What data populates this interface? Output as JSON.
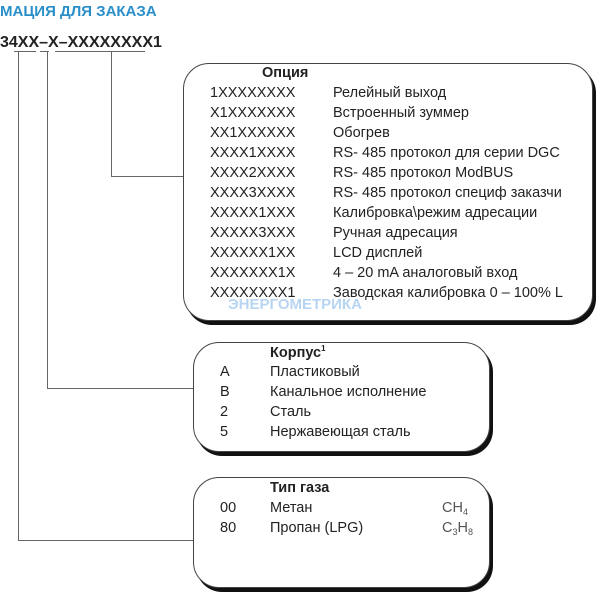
{
  "title": "МАЦИЯ ДЛЯ ЗАКАЗА",
  "code": "34XX–X–XXXXXXXX1",
  "options": {
    "header": "Опция",
    "rows": [
      {
        "code": "1XXXXXXXX",
        "desc": "Релейный выход"
      },
      {
        "code": "X1XXXXXXX",
        "desc": "Встроенный зуммер"
      },
      {
        "code": "XX1XXXXXX",
        "desc": "Обогрев"
      },
      {
        "code": "XXXX1XXXX",
        "desc": "RS- 485 протокол для серии DGC"
      },
      {
        "code": "XXXX2XXXX",
        "desc": "RS- 485 протокол ModBUS"
      },
      {
        "code": "XXXX3XXXX",
        "desc": "RS- 485 протокол специф заказчи"
      },
      {
        "code": "XXXXX1XXX",
        "desc": "Калибровка\\режим адресации"
      },
      {
        "code": "XXXXX3XXX",
        "desc": "Ручная адресация"
      },
      {
        "code": "XXXXXX1XX",
        "desc": "LCD дисплей"
      },
      {
        "code": "XXXXXXX1X",
        "desc": "4 – 20 mA аналоговый вход"
      },
      {
        "code": "XXXXXXXX1",
        "desc": "Заводская калибровка 0 – 100% L"
      }
    ]
  },
  "housing": {
    "header": "Корпус",
    "footnote": "1",
    "rows": [
      {
        "code": "A",
        "desc": "Пластиковый"
      },
      {
        "code": "B",
        "desc": "Канальное исполнение"
      },
      {
        "code": "2",
        "desc": "Сталь"
      },
      {
        "code": "5",
        "desc": "Нержавеющая сталь"
      }
    ]
  },
  "gas": {
    "header": "Тип газа",
    "rows": [
      {
        "code": "00",
        "desc": "Метан",
        "formula": [
          "CH",
          "4"
        ]
      },
      {
        "code": "80",
        "desc": "Пропан (LPG)",
        "formula": [
          "C",
          "3",
          "H",
          "8"
        ]
      }
    ]
  },
  "watermark": "ЭНЕРГОМЕТРИКА"
}
